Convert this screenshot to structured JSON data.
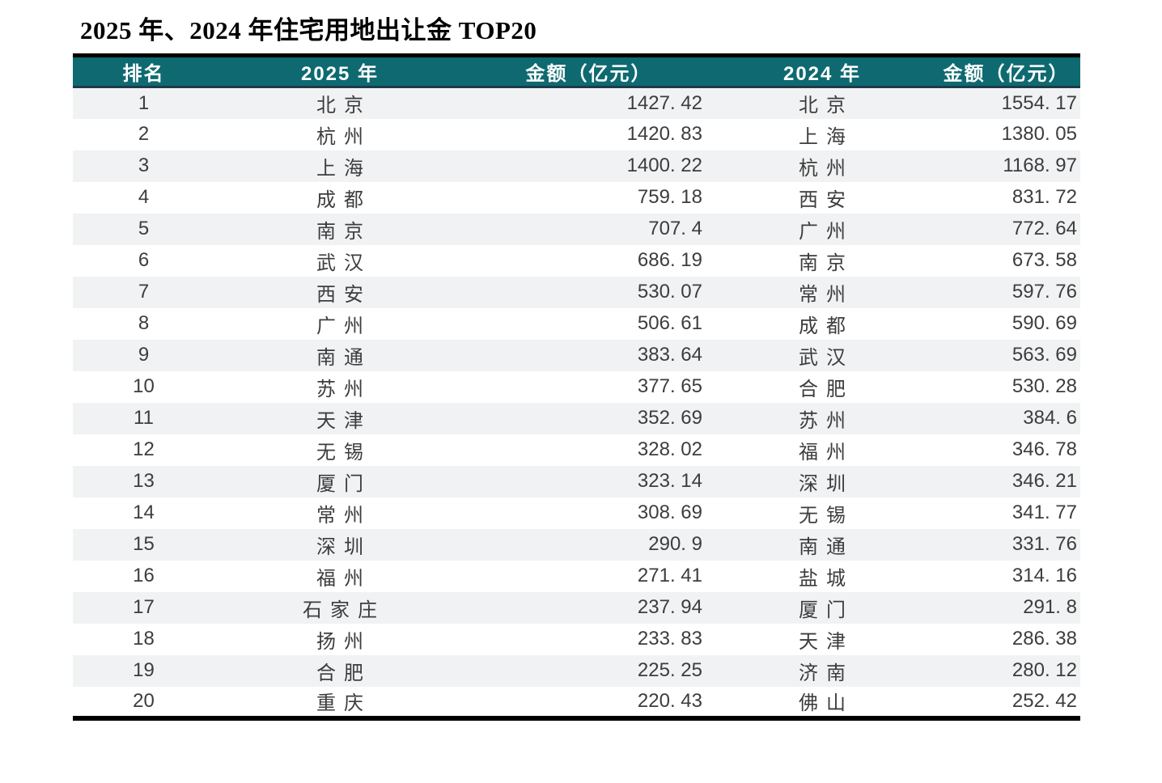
{
  "title": "2025 年、2024 年住宅用地出让金 TOP20",
  "colors": {
    "header_bg": "#0E6A70",
    "header_text": "#FFFFFF",
    "header_rule": "#1C3A4A",
    "stripe": "#F1F2F3",
    "row_bg": "#FFFFFF",
    "text": "#3D3D3D",
    "border": "#000000",
    "title_color": "#000000"
  },
  "chart_data": {
    "type": "table",
    "title": "2025 年、2024 年住宅用地出让金 TOP20",
    "unit": "亿元",
    "columns": [
      "排名",
      "2025 年",
      "金额（亿元）",
      "2024 年",
      "金额（亿元）"
    ],
    "rows": [
      [
        1,
        "北京",
        1427.42,
        "北京",
        1554.17
      ],
      [
        2,
        "杭州",
        1420.83,
        "上海",
        1380.05
      ],
      [
        3,
        "上海",
        1400.22,
        "杭州",
        1168.97
      ],
      [
        4,
        "成都",
        759.18,
        "西安",
        831.72
      ],
      [
        5,
        "南京",
        707.4,
        "广州",
        772.64
      ],
      [
        6,
        "武汉",
        686.19,
        "南京",
        673.58
      ],
      [
        7,
        "西安",
        530.07,
        "常州",
        597.76
      ],
      [
        8,
        "广州",
        506.61,
        "成都",
        590.69
      ],
      [
        9,
        "南通",
        383.64,
        "武汉",
        563.69
      ],
      [
        10,
        "苏州",
        377.65,
        "合肥",
        530.28
      ],
      [
        11,
        "天津",
        352.69,
        "苏州",
        384.6
      ],
      [
        12,
        "无锡",
        328.02,
        "福州",
        346.78
      ],
      [
        13,
        "厦门",
        323.14,
        "深圳",
        346.21
      ],
      [
        14,
        "常州",
        308.69,
        "无锡",
        341.77
      ],
      [
        15,
        "深圳",
        290.9,
        "南通",
        331.76
      ],
      [
        16,
        "福州",
        271.41,
        "盐城",
        314.16
      ],
      [
        17,
        "石家庄",
        237.94,
        "厦门",
        291.8
      ],
      [
        18,
        "扬州",
        233.83,
        "天津",
        286.38
      ],
      [
        19,
        "合肥",
        225.25,
        "济南",
        280.12
      ],
      [
        20,
        "重庆",
        220.43,
        "佛山",
        252.42
      ]
    ]
  }
}
